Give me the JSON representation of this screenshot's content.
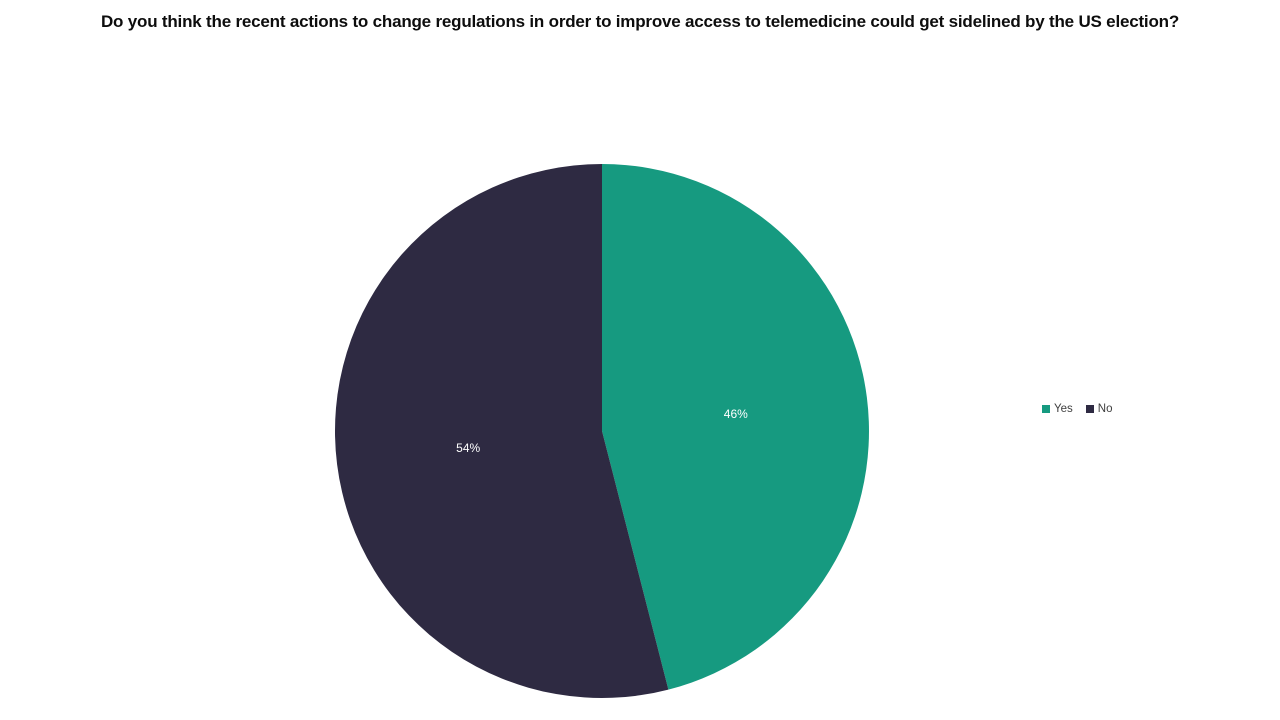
{
  "chart_data": {
    "type": "pie",
    "title": "Do you think the recent actions to change regulations in order to improve access to telemedicine could get sidelined by the US election?",
    "slices": [
      {
        "label": "Yes",
        "value": 46,
        "display_label": "46%",
        "color": "#169A80"
      },
      {
        "label": "No",
        "value": 54,
        "display_label": "54%",
        "color": "#2E2A42"
      }
    ],
    "start_angle": "12 o'clock",
    "direction": "clockwise",
    "legend_position": "right",
    "data_labels": "percent, white, inside slices",
    "title_color": "#0D0D0D",
    "legend_text_color": "#404040",
    "background_color": "#FFFFFF"
  }
}
